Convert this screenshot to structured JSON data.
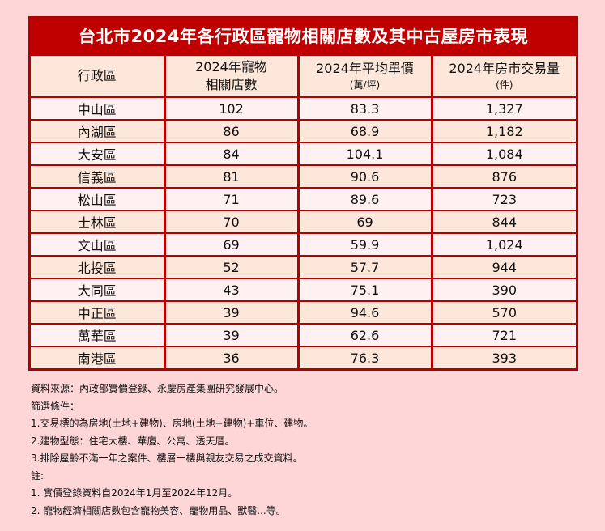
{
  "title": "台北市2024年各行政區寵物相關店數及其中古屋房市表現",
  "headers": [
    {
      "main": "行政區",
      "sub": ""
    },
    {
      "main": "2024年寵物",
      "sub": "相關店數"
    },
    {
      "main": "2024年平均單價",
      "sub": "(萬/坪)"
    },
    {
      "main": "2024年房市交易量",
      "sub": "(件)"
    }
  ],
  "rows": [
    {
      "district": "中山區",
      "pet_stores": "102",
      "avg_price": "83.3",
      "volume": "1,327"
    },
    {
      "district": "內湖區",
      "pet_stores": "86",
      "avg_price": "68.9",
      "volume": "1,182"
    },
    {
      "district": "大安區",
      "pet_stores": "84",
      "avg_price": "104.1",
      "volume": "1,084"
    },
    {
      "district": "信義區",
      "pet_stores": "81",
      "avg_price": "90.6",
      "volume": "876"
    },
    {
      "district": "松山區",
      "pet_stores": "71",
      "avg_price": "89.6",
      "volume": "723"
    },
    {
      "district": "士林區",
      "pet_stores": "70",
      "avg_price": "69",
      "volume": "844"
    },
    {
      "district": "文山區",
      "pet_stores": "69",
      "avg_price": "59.9",
      "volume": "1,024"
    },
    {
      "district": "北投區",
      "pet_stores": "52",
      "avg_price": "57.7",
      "volume": "944"
    },
    {
      "district": "大同區",
      "pet_stores": "43",
      "avg_price": "75.1",
      "volume": "390"
    },
    {
      "district": "中正區",
      "pet_stores": "39",
      "avg_price": "94.6",
      "volume": "570"
    },
    {
      "district": "萬華區",
      "pet_stores": "39",
      "avg_price": "62.6",
      "volume": "721"
    },
    {
      "district": "南港區",
      "pet_stores": "36",
      "avg_price": "76.3",
      "volume": "393"
    }
  ],
  "notes": [
    "資料來源：內政部實價登錄、永慶房產集團研究發展中心。",
    "篩選條件：",
    "1.交易標的為房地(土地+建物)、房地(土地+建物)+車位、建物。",
    "2.建物型態：住宅大樓、華廈、公寓、透天厝。",
    "3.排除屋齡不滿一年之案件、樓層一樓與親友交易之成交資料。",
    "註:",
    "1. 實價登錄資料自2024年1月至2024年12月。",
    "2. 寵物經濟相關店數包含寵物美容、寵物用品、獸醫...等。"
  ],
  "colors": {
    "page_background": "#ffd6d8",
    "title_background": "#c00000",
    "border": "#b30000",
    "row_light": "#fff1f2",
    "row_peach": "#fde7da"
  }
}
